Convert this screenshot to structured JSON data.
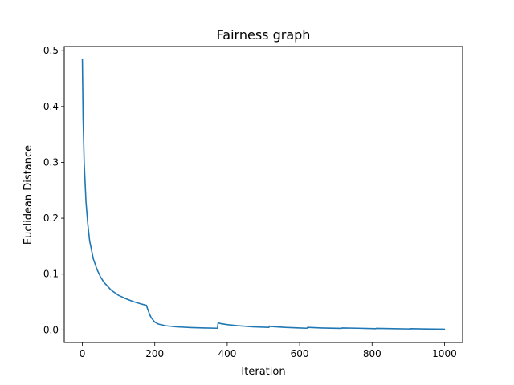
{
  "chart_data": {
    "type": "line",
    "title": "Fairness graph",
    "xlabel": "Iteration",
    "ylabel": "Euclidean Distance",
    "xlim": [
      -50,
      1050
    ],
    "ylim": [
      -0.0225,
      0.5075
    ],
    "xticks": [
      0,
      200,
      400,
      600,
      800,
      1000
    ],
    "yticks": [
      0.0,
      0.1,
      0.2,
      0.3,
      0.4,
      0.5
    ],
    "xtick_labels": [
      "0",
      "200",
      "400",
      "600",
      "800",
      "1000"
    ],
    "ytick_labels": [
      "0.0",
      "0.1",
      "0.2",
      "0.3",
      "0.4",
      "0.5"
    ],
    "grid": false,
    "series": [
      {
        "color": "#1f77b4",
        "x": [
          0,
          2,
          5,
          10,
          15,
          20,
          30,
          40,
          50,
          60,
          80,
          100,
          120,
          140,
          160,
          177,
          180,
          185,
          190,
          200,
          210,
          230,
          260,
          300,
          340,
          373,
          375,
          380,
          400,
          430,
          470,
          515,
          517,
          520,
          560,
          600,
          620,
          622,
          660,
          715,
          717,
          760,
          810,
          812,
          860,
          905,
          907,
          950,
          1000
        ],
        "y": [
          0.485,
          0.38,
          0.3,
          0.23,
          0.19,
          0.16,
          0.128,
          0.109,
          0.095,
          0.085,
          0.071,
          0.062,
          0.056,
          0.051,
          0.047,
          0.044,
          0.038,
          0.029,
          0.022,
          0.014,
          0.0105,
          0.0075,
          0.0055,
          0.0042,
          0.0034,
          0.003,
          0.013,
          0.0115,
          0.0095,
          0.0075,
          0.0055,
          0.0045,
          0.007,
          0.0062,
          0.0045,
          0.0035,
          0.003,
          0.0045,
          0.0035,
          0.0028,
          0.0035,
          0.003,
          0.0022,
          0.0028,
          0.0022,
          0.0017,
          0.0022,
          0.0017,
          0.0013
        ]
      }
    ]
  }
}
